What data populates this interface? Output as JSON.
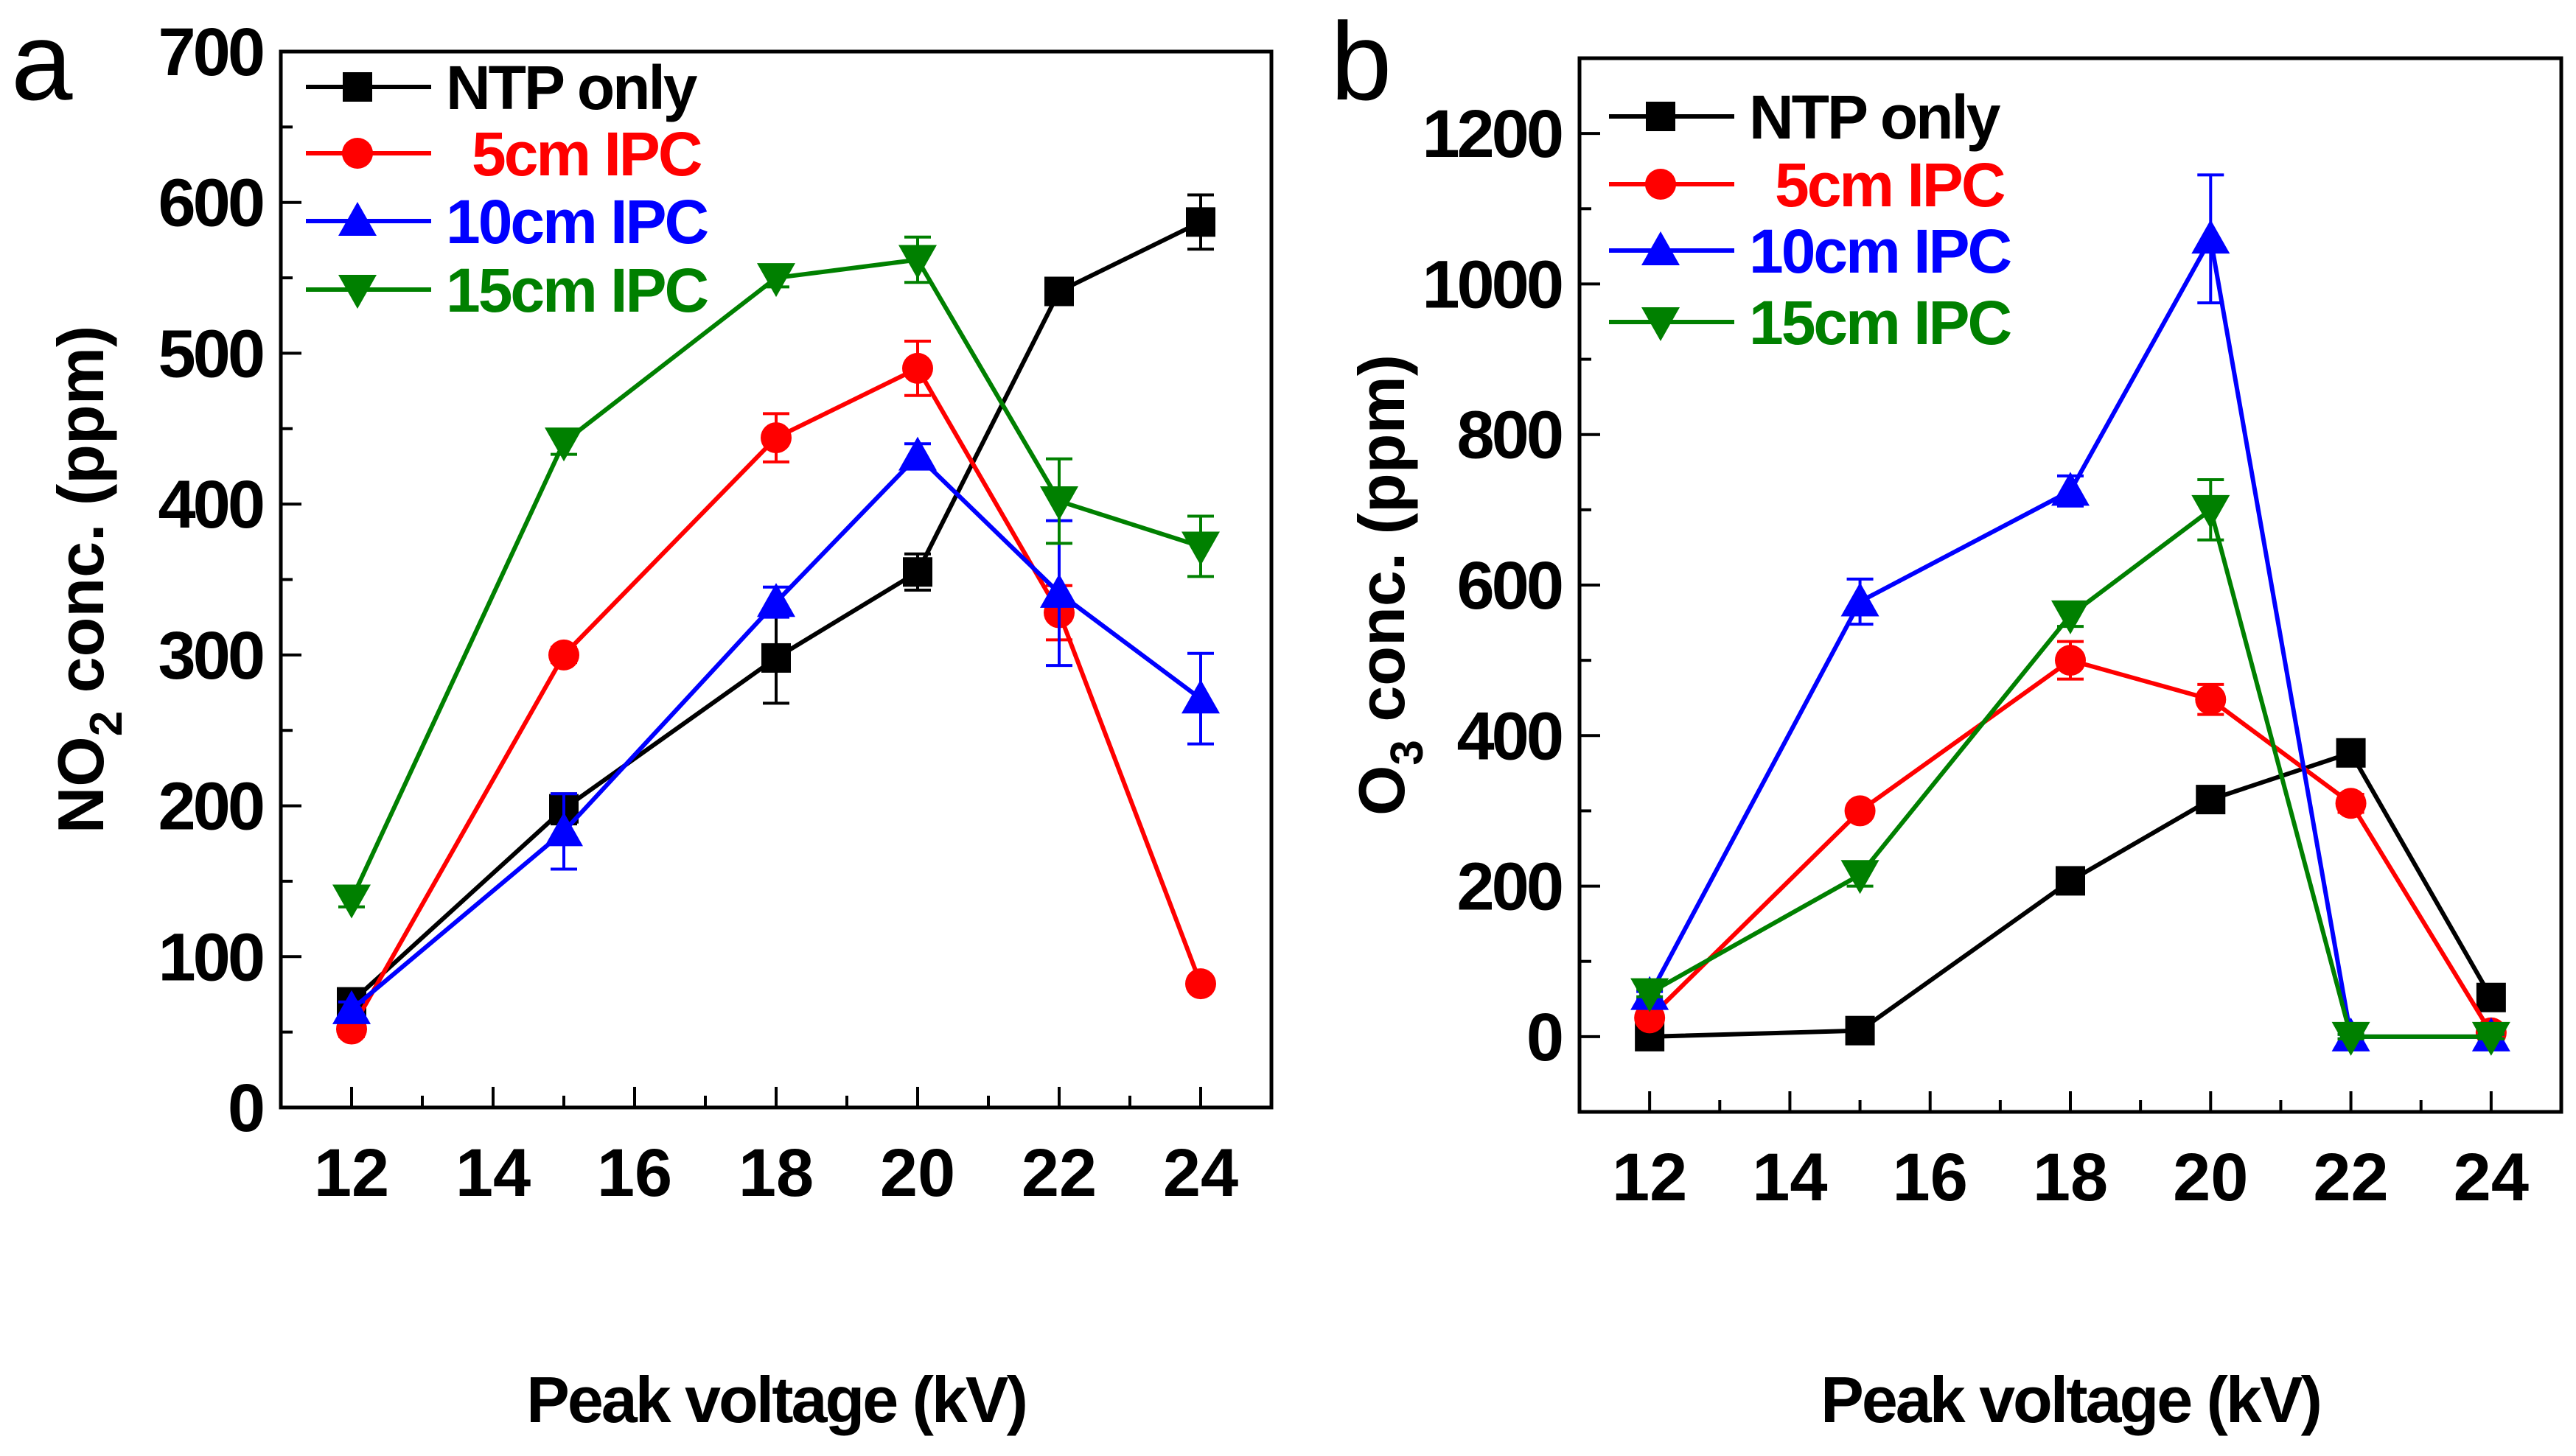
{
  "colors": {
    "NTP only": "#000000",
    "5cm IPC": "#ff0000",
    "10cm IPC": "#0000ff",
    "15cm IPC": "#008000"
  },
  "chart_data": [
    {
      "panel_label": "a",
      "type": "line",
      "xlabel": "Peak voltage (kV)",
      "ylabel_main": "NO",
      "ylabel_sub": "2",
      "ylabel_rest": " conc. (ppm)",
      "xlim": [
        11,
        25
      ],
      "ylim": [
        0,
        700
      ],
      "xticks": [
        12,
        14,
        16,
        18,
        20,
        22,
        24
      ],
      "yticks": [
        0,
        100,
        200,
        300,
        400,
        500,
        600,
        700
      ],
      "legend_position": "top-left",
      "x": [
        12,
        15,
        18,
        20,
        22,
        24
      ],
      "series": [
        {
          "name": "NTP only",
          "marker": "square",
          "values": [
            70,
            198,
            298,
            355,
            541,
            587
          ],
          "errors": [
            5,
            10,
            30,
            12,
            8,
            18
          ]
        },
        {
          "name": "5cm IPC",
          "marker": "circle",
          "values": [
            52,
            300,
            444,
            490,
            328,
            82
          ],
          "errors": [
            5,
            5,
            16,
            18,
            18,
            3
          ]
        },
        {
          "name": "10cm IPC",
          "marker": "triangle-up",
          "values": [
            65,
            183,
            335,
            432,
            341,
            271
          ],
          "errors": [
            5,
            25,
            10,
            8,
            48,
            30
          ]
        },
        {
          "name": "15cm IPC",
          "marker": "triangle-down",
          "values": [
            138,
            441,
            550,
            562,
            402,
            372
          ],
          "errors": [
            5,
            8,
            6,
            15,
            28,
            20
          ]
        }
      ]
    },
    {
      "panel_label": "b",
      "type": "line",
      "xlabel": "Peak voltage (kV)",
      "ylabel_main": "O",
      "ylabel_sub": "3",
      "ylabel_rest": " conc. (ppm)",
      "xlim": [
        11,
        25
      ],
      "ylim": [
        -100,
        1300
      ],
      "xticks": [
        12,
        14,
        16,
        18,
        20,
        22,
        24
      ],
      "yticks": [
        0,
        200,
        400,
        600,
        800,
        1000,
        1200
      ],
      "legend_position": "top-left",
      "x": [
        12,
        15,
        18,
        20,
        22,
        24
      ],
      "series": [
        {
          "name": "NTP only",
          "marker": "square",
          "values": [
            0,
            8,
            207,
            315,
            377,
            52
          ],
          "errors": [
            5,
            5,
            8,
            8,
            8,
            5
          ]
        },
        {
          "name": "5cm IPC",
          "marker": "circle",
          "values": [
            25,
            300,
            500,
            448,
            310,
            5
          ],
          "errors": [
            5,
            8,
            25,
            20,
            12,
            5
          ]
        },
        {
          "name": "10cm IPC",
          "marker": "triangle-up",
          "values": [
            55,
            578,
            725,
            1060,
            0,
            0
          ],
          "errors": [
            5,
            30,
            20,
            85,
            3,
            3
          ]
        },
        {
          "name": "15cm IPC",
          "marker": "triangle-down",
          "values": [
            58,
            215,
            560,
            700,
            0,
            0
          ],
          "errors": [
            5,
            15,
            15,
            40,
            3,
            3
          ]
        }
      ]
    }
  ]
}
